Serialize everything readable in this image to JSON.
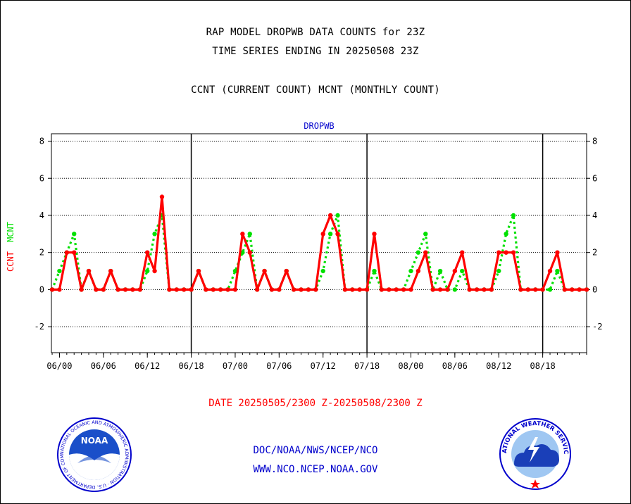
{
  "header": {
    "line1": "RAP MODEL DROPWB DATA COUNTS for 23Z",
    "line2": "TIME SERIES ENDING IN 20250508 23Z",
    "line3": "CCNT (CURRENT COUNT) MCNT (MONTHLY COUNT)"
  },
  "chart_data": {
    "type": "line",
    "title": "DROPWB",
    "ylabel_series1": "CCNT",
    "ylabel_series2": "MCNT",
    "ylim": [
      -3.4,
      8.4
    ],
    "yticks": [
      -2,
      0,
      2,
      4,
      6,
      8
    ],
    "x_tick_labels": [
      "06/00",
      "06/06",
      "06/12",
      "06/18",
      "07/00",
      "07/06",
      "07/12",
      "07/18",
      "08/00",
      "08/06",
      "08/12",
      "08/18"
    ],
    "x_tick_hours": [
      0,
      6,
      12,
      18,
      24,
      30,
      36,
      42,
      48,
      54,
      60,
      66
    ],
    "day_separator_hours": [
      18,
      42,
      66
    ],
    "grid": true,
    "colors": {
      "CCNT": "#ff0000",
      "MCNT": "#00e000",
      "title": "#0000cc"
    },
    "series": [
      {
        "name": "CCNT",
        "x": [
          -1,
          0,
          1,
          2,
          3,
          4,
          5,
          6,
          7,
          8,
          9,
          10,
          11,
          12,
          13,
          14,
          15,
          16,
          17,
          18,
          19,
          20,
          21,
          22,
          23,
          24,
          25,
          26,
          27,
          28,
          29,
          30,
          31,
          32,
          33,
          34,
          35,
          36,
          37,
          38,
          39,
          40,
          41,
          42,
          43,
          44,
          45,
          46,
          47,
          48,
          49,
          50,
          51,
          52,
          53,
          54,
          55,
          56,
          57,
          58,
          59,
          60,
          61,
          62,
          63,
          64,
          65,
          66,
          67,
          68,
          69,
          70,
          71,
          72
        ],
        "values": [
          0,
          0,
          2,
          2,
          0,
          1,
          0,
          0,
          1,
          0,
          0,
          0,
          0,
          2,
          1,
          5,
          0,
          0,
          0,
          0,
          1,
          0,
          0,
          0,
          0,
          0,
          3,
          2,
          0,
          1,
          0,
          0,
          1,
          0,
          0,
          0,
          0,
          3,
          4,
          3,
          0,
          0,
          0,
          0,
          3,
          0,
          0,
          0,
          0,
          0,
          1,
          2,
          0,
          0,
          0,
          1,
          2,
          0,
          0,
          0,
          0,
          2,
          2,
          2,
          0,
          0,
          0,
          0,
          1,
          2,
          0,
          0,
          0,
          0
        ]
      },
      {
        "name": "MCNT",
        "x": [
          -1,
          0,
          1,
          2,
          3,
          4,
          5,
          6,
          7,
          8,
          9,
          10,
          11,
          12,
          13,
          14,
          15,
          16,
          17,
          18,
          19,
          20,
          21,
          22,
          23,
          24,
          25,
          26,
          27,
          28,
          29,
          30,
          31,
          32,
          33,
          34,
          35,
          36,
          37,
          38,
          39,
          40,
          41,
          42,
          43,
          44,
          45,
          46,
          47,
          48,
          49,
          50,
          51,
          52,
          53,
          54,
          55,
          56,
          57,
          58,
          59,
          60,
          61,
          62,
          63,
          64,
          65,
          66,
          67,
          68,
          69,
          70,
          71,
          72
        ],
        "values": [
          0,
          1,
          2,
          3,
          0,
          1,
          0,
          0,
          1,
          0,
          0,
          0,
          0,
          1,
          3,
          4,
          0,
          0,
          0,
          0,
          1,
          0,
          0,
          0,
          0,
          1,
          2,
          3,
          0,
          1,
          0,
          0,
          1,
          0,
          0,
          0,
          0,
          1,
          3,
          4,
          0,
          0,
          0,
          0,
          1,
          0,
          0,
          0,
          0,
          1,
          2,
          3,
          0,
          1,
          0,
          0,
          1,
          0,
          0,
          0,
          0,
          1,
          3,
          4,
          0,
          0,
          0,
          0,
          0,
          1,
          0,
          0,
          0,
          0
        ]
      }
    ]
  },
  "footer": {
    "date_range": "DATE 20250505/2300 Z-20250508/2300 Z",
    "org_line": "DOC/NOAA/NWS/NCEP/NCO",
    "url_line": "WWW.NCO.NCEP.NOAA.GOV",
    "noaa_logo_text": "NOAA",
    "noaa_ring_text": "NATIONAL OCEANIC AND ATMOSPHERIC ADMINISTRATION · U.S. DEPARTMENT OF COMMERCE ·",
    "nws_ring_text": "NATIONAL WEATHER SERVICE"
  }
}
